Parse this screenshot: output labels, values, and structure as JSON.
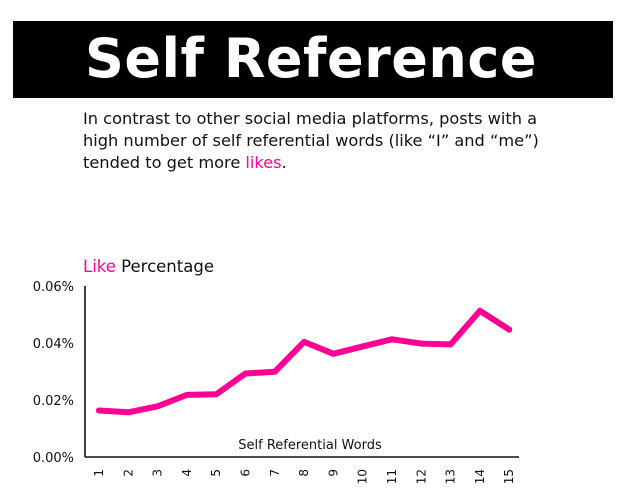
{
  "header": {
    "title": "Self Reference"
  },
  "intro": {
    "text_part1": "In contrast to other social media platforms, posts with a high number of self referential words (like “I” and “me”) tended to get more ",
    "highlight": "likes",
    "text_part2": "."
  },
  "colors": {
    "accent": "#ff0095",
    "title_bar": "#000000",
    "axis": "#111111"
  },
  "chart_data": {
    "type": "line",
    "title_highlight": "Like",
    "title_rest": " Percentage",
    "xlabel": "Self Referential Words",
    "ylabel": "",
    "x": [
      "1",
      "2",
      "3",
      "4",
      "5",
      "6",
      "7",
      "8",
      "9",
      "10",
      "11",
      "12",
      "13",
      "14",
      "15"
    ],
    "series": [
      {
        "values": [
          0.0163,
          0.0157,
          0.0178,
          0.0218,
          0.022,
          0.0293,
          0.0299,
          0.0404,
          0.0362,
          0.0388,
          0.0413,
          0.0398,
          0.0395,
          0.0513,
          0.0447
        ],
        "color": "#ff0095"
      }
    ],
    "ylim": [
      0,
      0.06
    ],
    "yticks": [
      {
        "value": 0.06,
        "label": "0.06%"
      },
      {
        "value": 0.04,
        "label": "0.04%"
      },
      {
        "value": 0.02,
        "label": "0.02%"
      },
      {
        "value": 0.0,
        "label": "0.00%"
      }
    ],
    "grid": false,
    "legend": "none"
  }
}
